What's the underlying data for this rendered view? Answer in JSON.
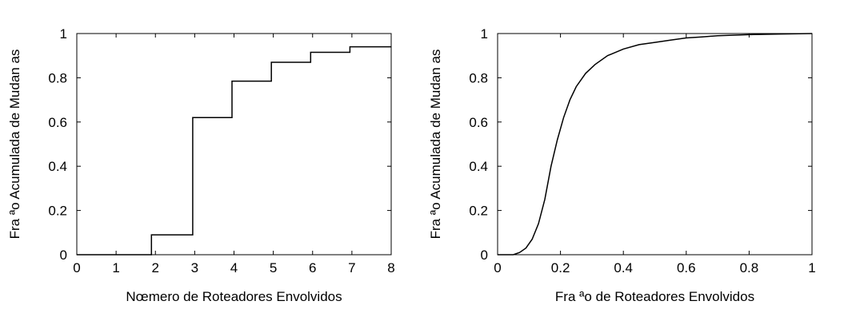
{
  "chart_data": [
    {
      "type": "line",
      "step": true,
      "title": "",
      "xlabel": "Nœmero de Roteadores Envolvidos",
      "ylabel": "Fra ªo Acumulada de Mudan as",
      "xlim": [
        0,
        8
      ],
      "ylim": [
        0,
        1
      ],
      "xticks": [
        "0",
        "1",
        "2",
        "3",
        "4",
        "5",
        "6",
        "7",
        "8"
      ],
      "yticks": [
        "0",
        "0.2",
        "0.4",
        "0.6",
        "0.8",
        "1"
      ],
      "grid": false,
      "series": [
        {
          "x": [
            0,
            1.9,
            1.9,
            2.95,
            2.95,
            3.95,
            3.95,
            4.95,
            4.95,
            5.95,
            5.95,
            6.95,
            6.95,
            8
          ],
          "y": [
            0,
            0,
            0.09,
            0.09,
            0.62,
            0.62,
            0.785,
            0.785,
            0.87,
            0.87,
            0.915,
            0.915,
            0.94,
            0.94
          ]
        }
      ]
    },
    {
      "type": "line",
      "title": "",
      "xlabel": "Fra ªo de Roteadores Envolvidos",
      "ylabel": "Fra ªo Acumulada de Mudan as",
      "xlim": [
        0,
        1
      ],
      "ylim": [
        0,
        1
      ],
      "xticks": [
        "0",
        "0.2",
        "0.4",
        "0.6",
        "0.8",
        "1"
      ],
      "yticks": [
        "0",
        "0.2",
        "0.4",
        "0.6",
        "0.8",
        "1"
      ],
      "grid": false,
      "series": [
        {
          "x": [
            0,
            0.05,
            0.07,
            0.09,
            0.11,
            0.13,
            0.15,
            0.17,
            0.19,
            0.21,
            0.23,
            0.25,
            0.28,
            0.31,
            0.35,
            0.4,
            0.45,
            0.5,
            0.55,
            0.6,
            0.65,
            0.7,
            0.8,
            0.9,
            1.0
          ],
          "y": [
            0,
            0,
            0.01,
            0.03,
            0.07,
            0.14,
            0.25,
            0.4,
            0.52,
            0.62,
            0.7,
            0.76,
            0.82,
            0.86,
            0.9,
            0.93,
            0.95,
            0.96,
            0.97,
            0.98,
            0.985,
            0.99,
            0.995,
            0.998,
            1.0
          ]
        }
      ]
    }
  ]
}
